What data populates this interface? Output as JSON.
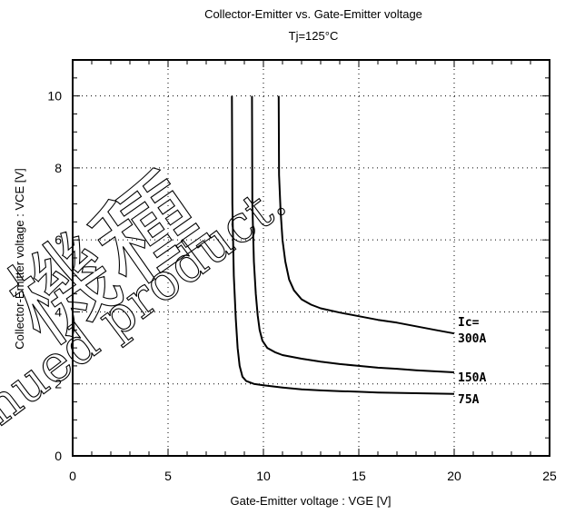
{
  "chart_data": {
    "type": "line",
    "title": "Collector-Emitter  vs.  Gate-Emitter  voltage",
    "subtitle": "Tj=125°C",
    "xlabel": "Gate-Emitter  voltage  :  VGE [V]",
    "ylabel": "Collector-Emitter  voltage  :    VCE [V]",
    "xlim": [
      0,
      25
    ],
    "ylim": [
      0,
      11
    ],
    "x_ticks": [
      0,
      5,
      10,
      15,
      20,
      25
    ],
    "y_ticks": [
      0,
      2,
      4,
      6,
      8,
      10
    ],
    "grid": "dotted",
    "curve_label_header": "Ic=",
    "series": [
      {
        "name": "300A",
        "x": [
          10.8,
          10.82,
          10.9,
          11.0,
          11.15,
          11.35,
          11.6,
          12.0,
          12.5,
          13.0,
          14.0,
          15.0,
          16.0,
          17.0,
          18.0,
          19.0,
          20.0
        ],
        "y": [
          10.0,
          7.8,
          6.8,
          6.0,
          5.4,
          4.9,
          4.6,
          4.35,
          4.2,
          4.1,
          3.98,
          3.88,
          3.78,
          3.7,
          3.6,
          3.5,
          3.4
        ]
      },
      {
        "name": "150A",
        "x": [
          9.4,
          9.42,
          9.5,
          9.6,
          9.7,
          9.8,
          9.95,
          10.2,
          10.6,
          11.0,
          12.0,
          13.0,
          14.0,
          15.0,
          16.0,
          17.0,
          18.0,
          19.0,
          20.0
        ],
        "y": [
          10.0,
          7.0,
          5.4,
          4.5,
          3.9,
          3.5,
          3.2,
          3.0,
          2.88,
          2.8,
          2.7,
          2.62,
          2.55,
          2.5,
          2.45,
          2.42,
          2.38,
          2.35,
          2.32
        ]
      },
      {
        "name": "75A",
        "x": [
          8.35,
          8.37,
          8.45,
          8.55,
          8.65,
          8.75,
          8.9,
          9.1,
          9.5,
          10.0,
          11.0,
          12.0,
          13.0,
          14.0,
          15.0,
          16.0,
          17.0,
          18.0,
          19.0,
          20.0
        ],
        "y": [
          10.0,
          7.0,
          5.0,
          3.8,
          3.0,
          2.5,
          2.2,
          2.08,
          2.0,
          1.96,
          1.9,
          1.85,
          1.82,
          1.8,
          1.78,
          1.76,
          1.75,
          1.74,
          1.73,
          1.72
        ]
      }
    ]
  },
  "watermark": {
    "kanji": "機種",
    "text": "nued product."
  }
}
